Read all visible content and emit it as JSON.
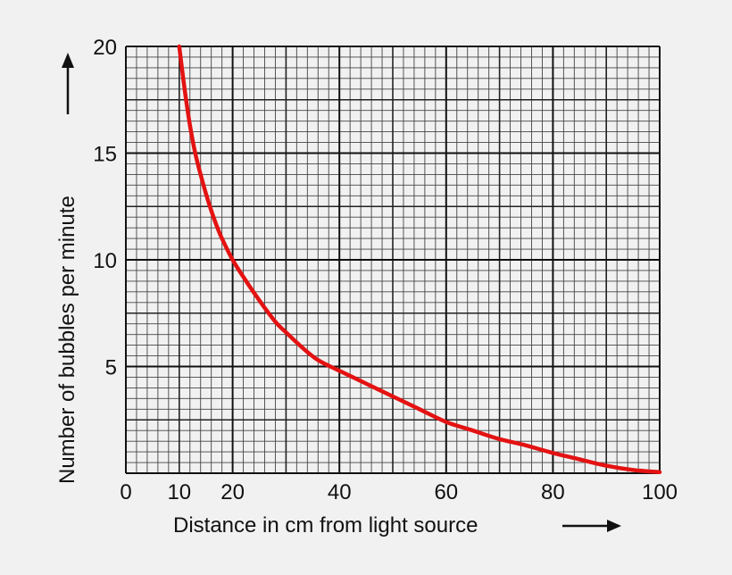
{
  "chart_data": {
    "type": "line",
    "title": "",
    "xlabel": "Distance in cm from light source",
    "ylabel": "Number of bubbles per minute",
    "xlim": [
      0,
      100
    ],
    "ylim": [
      0,
      20
    ],
    "xticks": [
      0,
      10,
      20,
      40,
      60,
      80,
      100
    ],
    "xtick_labels": [
      "0",
      "10",
      "20",
      "40",
      "60",
      "80",
      "100"
    ],
    "yticks": [
      5,
      10,
      15,
      20
    ],
    "ytick_labels": [
      "5",
      "10",
      "15",
      "20"
    ],
    "grid": true,
    "series": [
      {
        "color": "#e41212",
        "x": [
          10,
          11,
          12,
          13,
          14,
          15,
          16,
          17,
          18,
          20,
          22,
          25,
          28,
          30,
          33,
          36,
          40,
          45,
          50,
          55,
          60,
          65,
          70,
          75,
          80,
          85,
          90,
          95,
          100
        ],
        "y": [
          20,
          18,
          16.3,
          15,
          14,
          13.1,
          12.3,
          11.6,
          11,
          10,
          9.2,
          8.1,
          7.1,
          6.6,
          5.9,
          5.3,
          4.8,
          4.2,
          3.6,
          3.0,
          2.4,
          2.0,
          1.6,
          1.3,
          0.95,
          0.65,
          0.35,
          0.15,
          0.05
        ]
      }
    ]
  }
}
